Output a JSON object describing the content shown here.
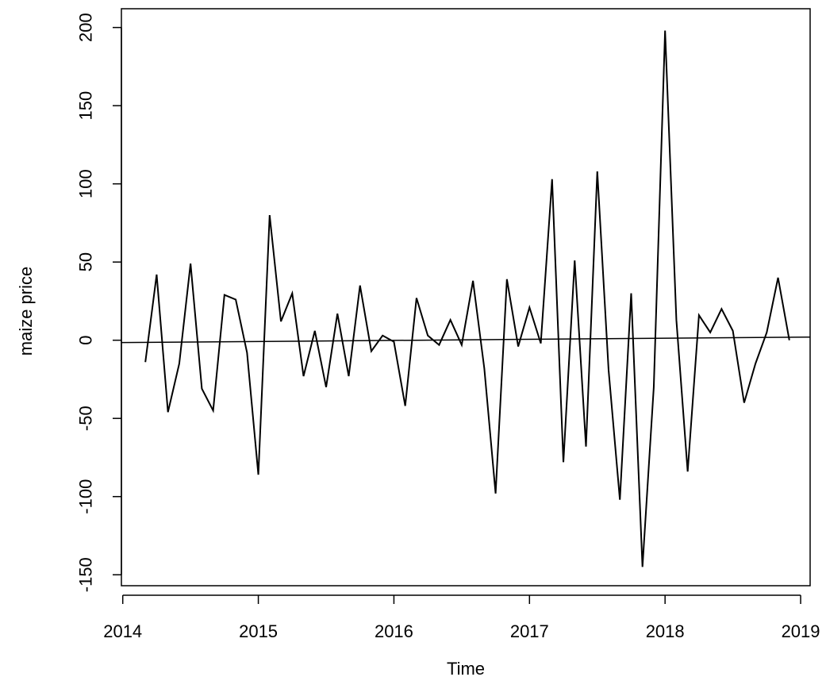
{
  "chart_data": {
    "type": "line",
    "title": "",
    "xlabel": "Time",
    "ylabel": "maize price",
    "xlim": [
      2013.99,
      2019.07
    ],
    "ylim": [
      -157,
      212
    ],
    "x_ticks": [
      2014,
      2015,
      2016,
      2017,
      2018,
      2019
    ],
    "y_ticks": [
      -150,
      -100,
      -50,
      0,
      50,
      100,
      150,
      200
    ],
    "grid": false,
    "legend": "none",
    "series": [
      {
        "start": 2014.1667,
        "step": 0.08333333,
        "values": [
          -14,
          42,
          -46,
          -15,
          49,
          -31,
          -45,
          29,
          26,
          -8,
          -86,
          80,
          12,
          30,
          -23,
          6,
          -30,
          17,
          -23,
          35,
          -7,
          3,
          -1,
          -42,
          27,
          3,
          -3,
          13,
          -3,
          38,
          -18,
          -98,
          39,
          -4,
          21,
          -2,
          103,
          -78,
          51,
          -68,
          108,
          -19,
          -102,
          30,
          -145,
          -30,
          198,
          13,
          -84,
          16,
          5,
          20,
          6,
          -40,
          -15,
          5,
          40,
          0
        ]
      },
      {
        "x": [
          2013.99,
          2019.07
        ],
        "values": [
          -1.5,
          2.0
        ]
      }
    ]
  }
}
